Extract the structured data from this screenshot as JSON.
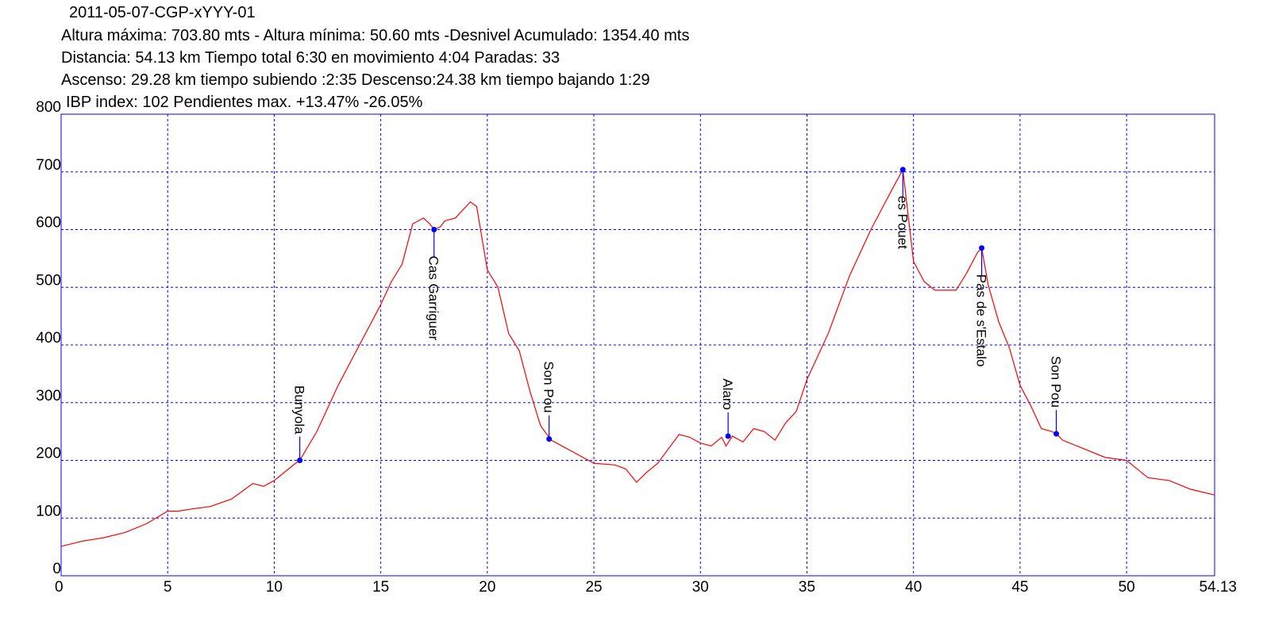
{
  "chart_data": {
    "type": "line",
    "title": "2011-05-07-CGP-xYYY-01",
    "info": [
      "Altura máxima: 703.80 mts - Altura mínima: 50.60 mts -Desnivel Acumulado: 1354.40 mts",
      "Distancia: 54.13 km  Tiempo total 6:30  en movimiento 4:04 Paradas: 33",
      "Ascenso: 29.28 km  tiempo subiendo :2:35  Descenso:24.38 km tiempo bajando 1:29",
      "IBP index: 102 Pendientes max. +13.47%  -26.05%"
    ],
    "color": "#ff0000",
    "grid": true,
    "xlim": [
      0,
      54.13
    ],
    "ylim": [
      0,
      800
    ],
    "xticks": [
      0,
      5,
      10,
      15,
      20,
      25,
      30,
      35,
      40,
      45,
      50,
      54.13
    ],
    "yticks": [
      0,
      100,
      200,
      300,
      400,
      500,
      600,
      700,
      800
    ],
    "x": [
      0,
      1,
      2,
      3,
      4,
      5,
      5.5,
      6,
      7,
      8,
      9,
      9.5,
      10,
      11,
      11.2,
      12,
      13,
      14,
      15,
      15.5,
      16,
      16.5,
      17,
      17.3,
      17.5,
      17.8,
      18,
      18.5,
      19,
      19.2,
      19.5,
      20,
      20.5,
      21,
      21.5,
      22,
      22.5,
      23,
      23.5,
      24,
      25,
      26,
      26.5,
      27,
      27.5,
      28,
      28.5,
      29,
      29.5,
      30,
      30.5,
      31,
      31.2,
      31.5,
      32,
      32.5,
      33,
      33.5,
      34,
      34.5,
      35,
      36,
      37,
      38,
      39,
      39.5,
      40,
      40.5,
      41,
      41.5,
      42,
      42.5,
      43,
      43.2,
      43.5,
      44,
      44.5,
      45,
      45.5,
      46,
      46.5,
      46.7,
      47,
      48,
      49,
      50,
      50.5,
      51,
      52,
      53,
      54.13
    ],
    "values": [
      51,
      60,
      66,
      75,
      90,
      112,
      112,
      115,
      120,
      133,
      160,
      155,
      165,
      195,
      200,
      250,
      330,
      400,
      470,
      510,
      540,
      610,
      620,
      610,
      600,
      605,
      615,
      620,
      640,
      648,
      640,
      530,
      500,
      420,
      390,
      320,
      260,
      235,
      225,
      215,
      195,
      192,
      185,
      162,
      180,
      195,
      220,
      245,
      240,
      230,
      225,
      240,
      225,
      242,
      232,
      255,
      250,
      235,
      265,
      285,
      340,
      420,
      520,
      600,
      670,
      704,
      545,
      510,
      495,
      495,
      495,
      525,
      560,
      568,
      505,
      440,
      395,
      330,
      295,
      255,
      250,
      246,
      235,
      220,
      205,
      200,
      185,
      170,
      165,
      150,
      140
    ],
    "waypoints": [
      {
        "name": "Bunyola",
        "x": 11.2,
        "y": 200
      },
      {
        "name": "Cas Garriguer",
        "x": 17.5,
        "y": 600
      },
      {
        "name": "Son Pou",
        "x": 22.9,
        "y": 237
      },
      {
        "name": "Alaro",
        "x": 31.3,
        "y": 242
      },
      {
        "name": "es Pouet",
        "x": 39.5,
        "y": 704
      },
      {
        "name": "Pas de s'Estalo",
        "x": 43.2,
        "y": 568
      },
      {
        "name": "Son Pou",
        "x": 46.7,
        "y": 246
      }
    ]
  }
}
